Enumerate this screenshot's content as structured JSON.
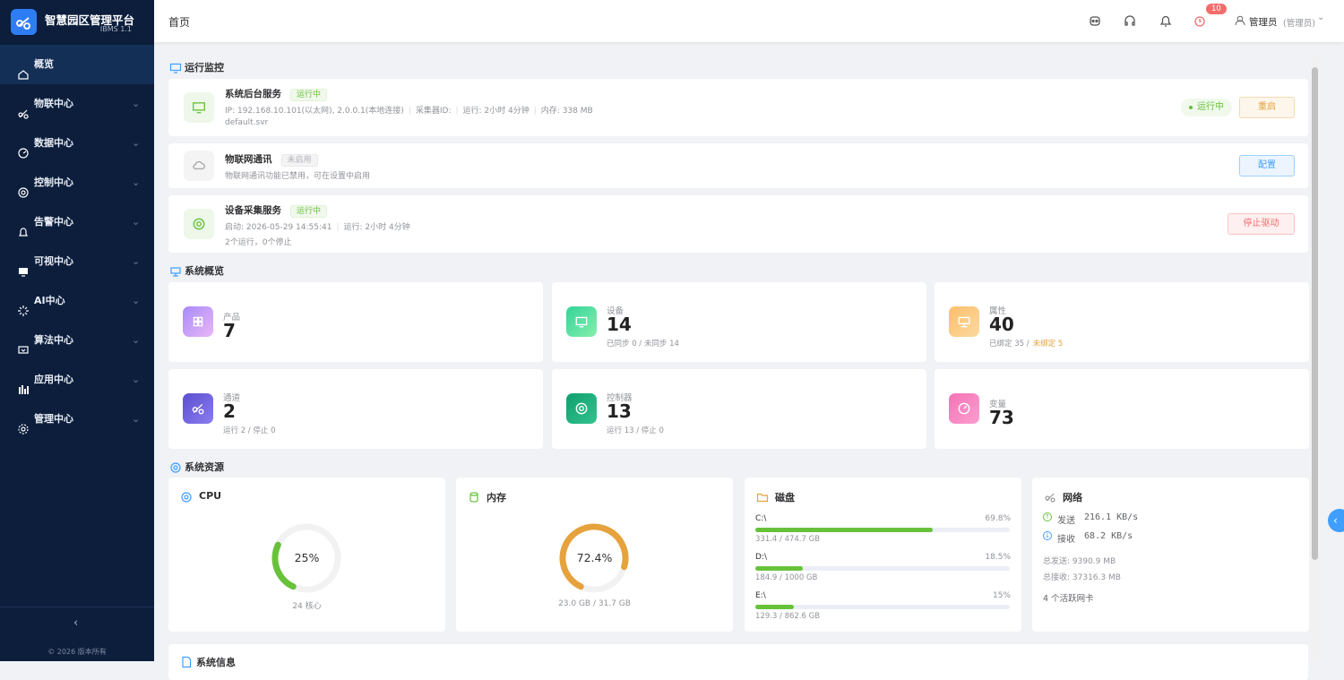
{
  "sidebar": {
    "title": "智慧园区管理平台",
    "version": "IBMS 1.1",
    "menu": [
      "概览",
      "物联中心",
      "数据中心",
      "控制中心",
      "告警中心",
      "可视中心",
      "AI中心",
      "算法中心",
      "应用中心",
      "管理中心"
    ],
    "footer": "© 2026 版本所有"
  },
  "header": {
    "breadcrumb": "首页",
    "badge": "10",
    "user": "管理员",
    "role": "(管理员)"
  },
  "monitor": {
    "title": "运行监控",
    "services": [
      {
        "name": "系统后台服务",
        "status": "运行中",
        "details": [
          "IP: 192.168.10.101(以太网), 2.0.0.1(本地连接)",
          "采集器ID:",
          "运行: 2小时 4分钟",
          "内存: 338 MB"
        ],
        "file": "default.svr",
        "state": "运行中",
        "action": "重启"
      },
      {
        "name": "物联网通讯",
        "status": "未启用",
        "details": [
          "物联网通讯功能已禁用，可在设置中启用"
        ],
        "action": "配置"
      },
      {
        "name": "设备采集服务",
        "status": "运行中",
        "details": [
          "启动: 2026-05-29 14:55:41",
          "运行: 2小时 4分钟"
        ],
        "note": "2个运行，0个停止",
        "action": "停止驱动"
      }
    ]
  },
  "overview": {
    "title": "系统概览",
    "cards": [
      {
        "label": "产品",
        "value": "7"
      },
      {
        "label": "设备",
        "value": "14",
        "sub": "已同步 0 / 未同步 14"
      },
      {
        "label": "属性",
        "value": "40",
        "sub": "已绑定 35 /",
        "sub_warn": "未绑定 5"
      },
      {
        "label": "通道",
        "value": "2",
        "sub": "运行 2 / 停止 0"
      },
      {
        "label": "控制器",
        "value": "13",
        "sub": "运行 13 / 停止 0"
      },
      {
        "label": "变量",
        "value": "73"
      }
    ]
  },
  "resources": {
    "title": "系统资源",
    "cpu": {
      "title": "CPU",
      "usage": "25%",
      "note": "24 核心"
    },
    "memory": {
      "title": "内存",
      "usage": "72.4%",
      "note": "23.0 GB / 31.7 GB"
    },
    "disk": {
      "title": "磁盘",
      "drives": [
        {
          "name": "C:\\",
          "usage": "69.8%",
          "size": "331.4 / 474.7 GB"
        },
        {
          "name": "D:\\",
          "usage": "18.5%",
          "size": "184.9 / 1000 GB"
        },
        {
          "name": "E:\\",
          "usage": "15%",
          "size": "129.3 / 862.6 GB"
        }
      ]
    },
    "network": {
      "title": "网络",
      "send_label": "发送",
      "send": "216.1 KB/s",
      "recv_label": "接收",
      "recv": "68.2 KB/s",
      "total_send": "总发送: 9390.9 MB",
      "total_recv": "总接收: 37316.3 MB",
      "nics": "4 个活跃网卡"
    }
  },
  "info": {
    "title": "系统信息"
  }
}
